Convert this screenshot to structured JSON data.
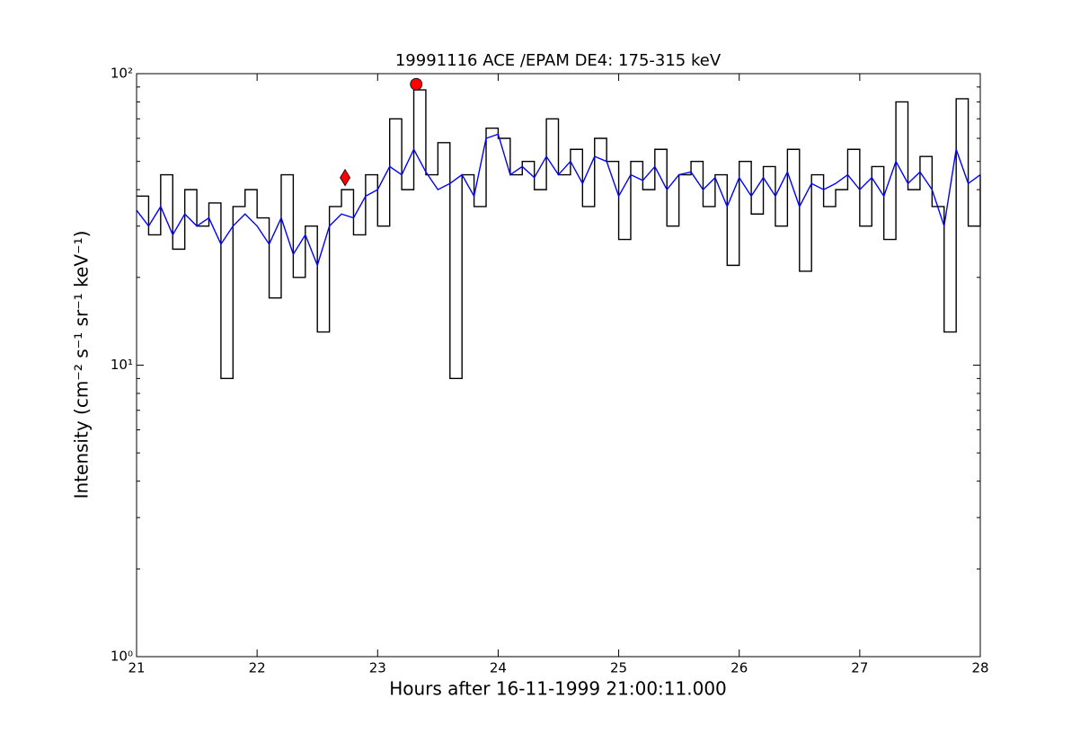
{
  "chart_data": {
    "type": "line",
    "title": "19991116 ACE /EPAM DE4: 175-315 keV",
    "xlabel": "Hours after 16-11-1999 21:00:11.000",
    "ylabel": "Intensity (cm⁻² s⁻¹ sr⁻¹ keV⁻¹)",
    "log_y": true,
    "xlim": [
      21,
      28
    ],
    "xticks": [
      21,
      22,
      23,
      24,
      25,
      26,
      27,
      28
    ],
    "ylim": [
      1,
      100
    ],
    "yticks": [
      {
        "value": 1,
        "label": "10⁰"
      },
      {
        "value": 10,
        "label": "10¹"
      },
      {
        "value": 100,
        "label": "10²"
      }
    ],
    "yminorticks": [
      2,
      3,
      4,
      5,
      6,
      7,
      8,
      9,
      20,
      30,
      40,
      50,
      60,
      70,
      80,
      90
    ],
    "x": [
      21.0,
      21.1,
      21.2,
      21.3,
      21.4,
      21.5,
      21.6,
      21.7,
      21.8,
      21.9,
      22.0,
      22.1,
      22.2,
      22.3,
      22.4,
      22.5,
      22.6,
      22.7,
      22.8,
      22.9,
      23.0,
      23.1,
      23.2,
      23.3,
      23.4,
      23.5,
      23.6,
      23.7,
      23.8,
      23.9,
      24.0,
      24.1,
      24.2,
      24.3,
      24.4,
      24.5,
      24.6,
      24.7,
      24.8,
      24.9,
      25.0,
      25.1,
      25.2,
      25.3,
      25.4,
      25.5,
      25.6,
      25.7,
      25.8,
      25.9,
      26.0,
      26.1,
      26.2,
      26.3,
      26.4,
      26.5,
      26.6,
      26.7,
      26.8,
      26.9,
      27.0,
      27.1,
      27.2,
      27.3,
      27.4,
      27.5,
      27.6,
      27.7,
      27.8,
      27.9,
      28.0
    ],
    "series": [
      {
        "color": "#000000",
        "drawstyle": "steps",
        "values": [
          38,
          28,
          45,
          25,
          40,
          30,
          36,
          9,
          35,
          40,
          32,
          17,
          45,
          20,
          30,
          13,
          35,
          40,
          28,
          45,
          30,
          70,
          40,
          88,
          45,
          58,
          9,
          45,
          35,
          65,
          60,
          45,
          50,
          40,
          70,
          45,
          55,
          35,
          60,
          50,
          27,
          50,
          40,
          55,
          30,
          45,
          50,
          35,
          45,
          22,
          50,
          33,
          48,
          30,
          55,
          21,
          45,
          35,
          40,
          55,
          30,
          48,
          27,
          80,
          40,
          52,
          35,
          13,
          82,
          30,
          45
        ]
      },
      {
        "color": "#0000ff",
        "drawstyle": "line",
        "values": [
          34,
          30,
          35,
          28,
          33,
          30,
          32,
          26,
          30,
          33,
          30,
          26,
          32,
          24,
          28,
          22,
          30,
          33,
          32,
          38,
          40,
          48,
          45,
          55,
          46,
          40,
          42,
          45,
          38,
          60,
          62,
          45,
          48,
          44,
          52,
          45,
          50,
          42,
          52,
          50,
          38,
          45,
          43,
          48,
          40,
          45,
          46,
          40,
          44,
          35,
          44,
          38,
          44,
          38,
          46,
          35,
          42,
          40,
          42,
          45,
          40,
          44,
          38,
          50,
          42,
          46,
          40,
          30,
          55,
          42,
          45
        ]
      }
    ],
    "points": [
      {
        "x": 23.32,
        "y": 92,
        "color": "#ff0000",
        "shape": "circle"
      },
      {
        "x": 22.73,
        "y": 44,
        "color": "#ff0000",
        "shape": "diamond"
      }
    ]
  }
}
